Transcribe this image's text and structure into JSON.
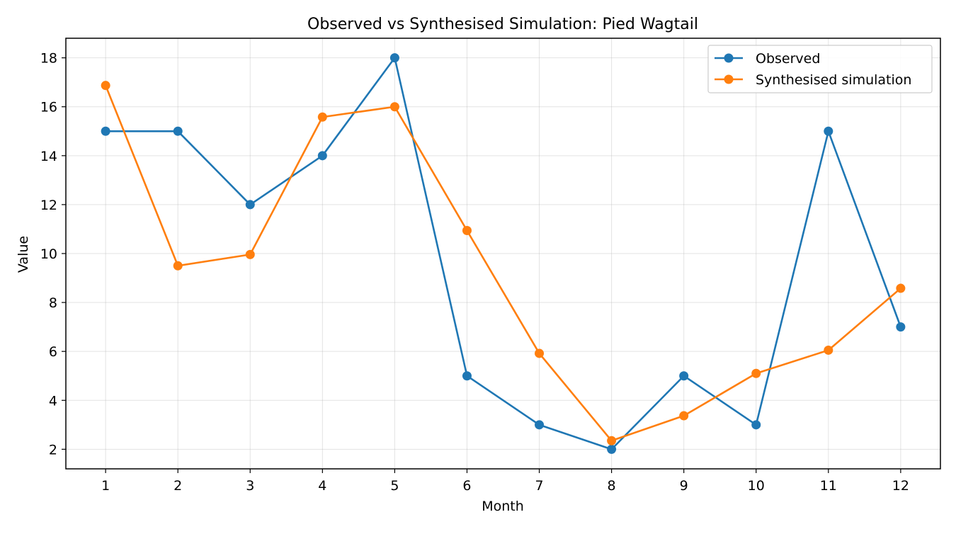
{
  "chart_data": {
    "type": "line",
    "title": "Observed vs Synthesised Simulation: Pied Wagtail",
    "xlabel": "Month",
    "ylabel": "Value",
    "x": [
      1,
      2,
      3,
      4,
      5,
      6,
      7,
      8,
      9,
      10,
      11,
      12
    ],
    "xlim": [
      0.45,
      12.55
    ],
    "ylim": [
      1.2,
      18.8
    ],
    "yticks": [
      2,
      4,
      6,
      8,
      10,
      12,
      14,
      16,
      18
    ],
    "grid": true,
    "legend_position": "upper right",
    "series": [
      {
        "name": "Observed",
        "color": "#1f77b4",
        "marker": "circle",
        "values": [
          15,
          15,
          12,
          14,
          18,
          5,
          3,
          2,
          5,
          3,
          15,
          7
        ]
      },
      {
        "name": "Synthesised simulation",
        "color": "#ff7f0e",
        "marker": "circle",
        "values": [
          16.87,
          9.5,
          9.96,
          15.58,
          16.0,
          10.94,
          5.92,
          2.35,
          3.37,
          5.1,
          6.05,
          8.58
        ]
      }
    ]
  }
}
